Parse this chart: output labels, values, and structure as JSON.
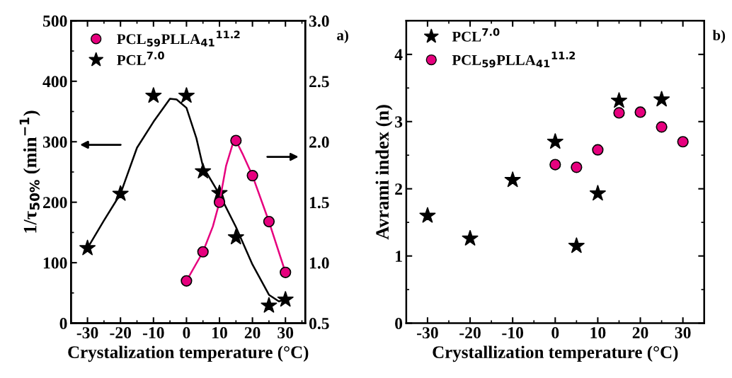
{
  "chart_data": [
    {
      "type": "scatter",
      "xlabel": "Crystalization temperature (°C)",
      "ylabel": "1/τ$_{50%}$ (min$^{−1}$)",
      "x": [
        -30,
        -20,
        -10,
        0,
        5,
        10,
        15,
        25,
        30
      ],
      "xlim": [
        -35,
        36
      ],
      "xticks": [
        -30,
        -20,
        -10,
        0,
        10,
        20,
        30
      ],
      "ylim": [
        0,
        500
      ],
      "yticks": [
        0,
        100,
        200,
        300,
        400,
        500
      ],
      "y2lim": [
        0.5,
        3.0
      ],
      "y2ticks": [
        {
          "value": 0.5,
          "label": "0.5"
        },
        {
          "value": 1.0,
          "label": "1.0"
        },
        {
          "value": 1.5,
          "label": "1.5"
        },
        {
          "value": 2.0,
          "label": "2.0"
        },
        {
          "value": 2.5,
          "label": "2.5"
        },
        {
          "value": 3.0,
          "label": "3.0"
        }
      ],
      "legend": "top left",
      "grid": false,
      "annotations": [
        "a)"
      ],
      "series": [
        {
          "type": "line",
          "color": "#000000",
          "x": [
            -30,
            -25,
            -20,
            -15,
            -10,
            -5,
            -3,
            0,
            3,
            5,
            10,
            15,
            20,
            25,
            28,
            30
          ],
          "values": [
            124,
            170,
            214,
            290,
            333,
            371,
            370,
            356,
            306,
            259,
            213,
            159,
            97,
            47,
            36,
            39
          ]
        },
        {
          "type": "line",
          "color": "#e6007e",
          "axis": "y2",
          "x": [
            0,
            5,
            8,
            10,
            12,
            14,
            15,
            17,
            20,
            25,
            30
          ],
          "values": [
            0.85,
            1.09,
            1.3,
            1.5,
            1.8,
            1.98,
            2.01,
            1.9,
            1.72,
            1.34,
            0.92
          ]
        },
        {
          "name": "PCL$_{59}$PLLA$_{41}$$^{11.2}$",
          "color": "#e6007e",
          "marker": "circle",
          "axis": "y2",
          "x": [
            0,
            5,
            10,
            15,
            20,
            25,
            30
          ],
          "values": [
            0.85,
            1.09,
            1.5,
            2.01,
            1.72,
            1.34,
            0.92
          ]
        },
        {
          "name": "PCL$^{7.0}$",
          "color": "#000000",
          "marker": "star",
          "values": [
            124,
            214,
            376,
            376,
            251,
            215,
            142,
            29,
            39
          ]
        }
      ]
    },
    {
      "type": "scatter",
      "xlabel": "Crystallization temperature (°C)",
      "ylabel": "Avrami index (n)",
      "xlim": [
        -35,
        35
      ],
      "xticks": [
        -30,
        -20,
        -10,
        0,
        10,
        20,
        30
      ],
      "ylim": [
        0,
        4.5
      ],
      "yticks": [
        0,
        1,
        2,
        3,
        4
      ],
      "legend": "top left",
      "grid": false,
      "annotations": [
        "b)"
      ],
      "series": [
        {
          "name": "PCL$^{7.0}$",
          "color": "#000000",
          "marker": "star",
          "x": [
            -30,
            -20,
            -10,
            0,
            5,
            10,
            15,
            25
          ],
          "values": [
            1.6,
            1.26,
            2.13,
            2.7,
            1.15,
            1.93,
            3.31,
            3.33
          ]
        },
        {
          "name": "PCL$_{59}$PLLA$_{41}$$^{11.2}$",
          "color": "#e6007e",
          "marker": "circle",
          "x": [
            0,
            5,
            10,
            15,
            20,
            25,
            30
          ],
          "values": [
            2.36,
            2.32,
            2.58,
            3.13,
            3.14,
            2.92,
            2.7
          ]
        }
      ]
    }
  ]
}
